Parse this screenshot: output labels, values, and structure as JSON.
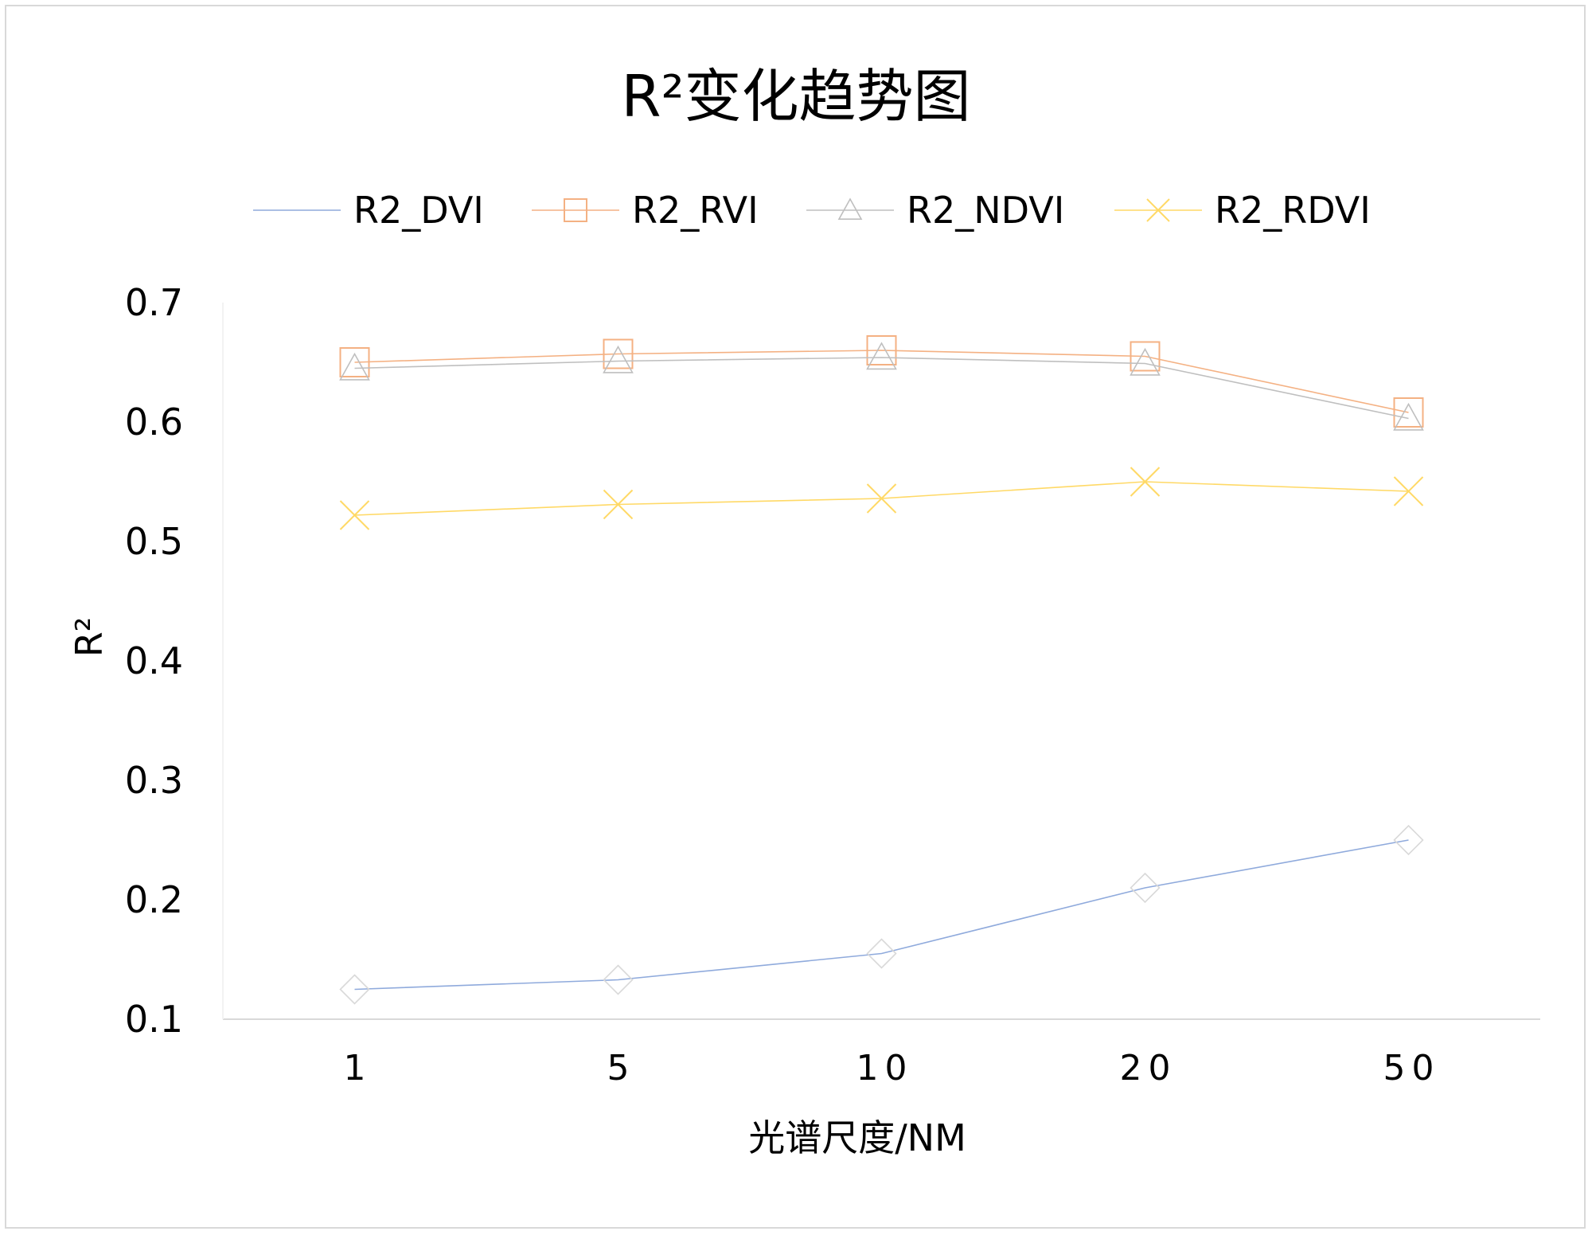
{
  "chart_data": {
    "type": "line",
    "title": "R²变化趋势图",
    "xlabel": "光谱尺度/NM",
    "ylabel": "R²",
    "categories": [
      "1",
      "5",
      "10",
      "20",
      "50"
    ],
    "ylim": [
      0.1,
      0.7
    ],
    "yticks": [
      "0.1",
      "0.2",
      "0.3",
      "0.4",
      "0.5",
      "0.6",
      "0.7"
    ],
    "grid": false,
    "legend_position": "top",
    "series": [
      {
        "name": "R2_DVI",
        "values": [
          0.125,
          0.133,
          0.155,
          0.21,
          0.25
        ],
        "color": "#8faadc",
        "marker": "diamond"
      },
      {
        "name": "R2_RVI",
        "values": [
          0.65,
          0.657,
          0.66,
          0.655,
          0.608
        ],
        "color": "#f4b183",
        "marker": "square"
      },
      {
        "name": "R2_NDVI",
        "values": [
          0.645,
          0.651,
          0.654,
          0.649,
          0.603
        ],
        "color": "#bfbfbf",
        "marker": "triangle"
      },
      {
        "name": "R2_RDVI",
        "values": [
          0.522,
          0.531,
          0.536,
          0.55,
          0.542
        ],
        "color": "#ffd966",
        "marker": "x"
      }
    ]
  }
}
